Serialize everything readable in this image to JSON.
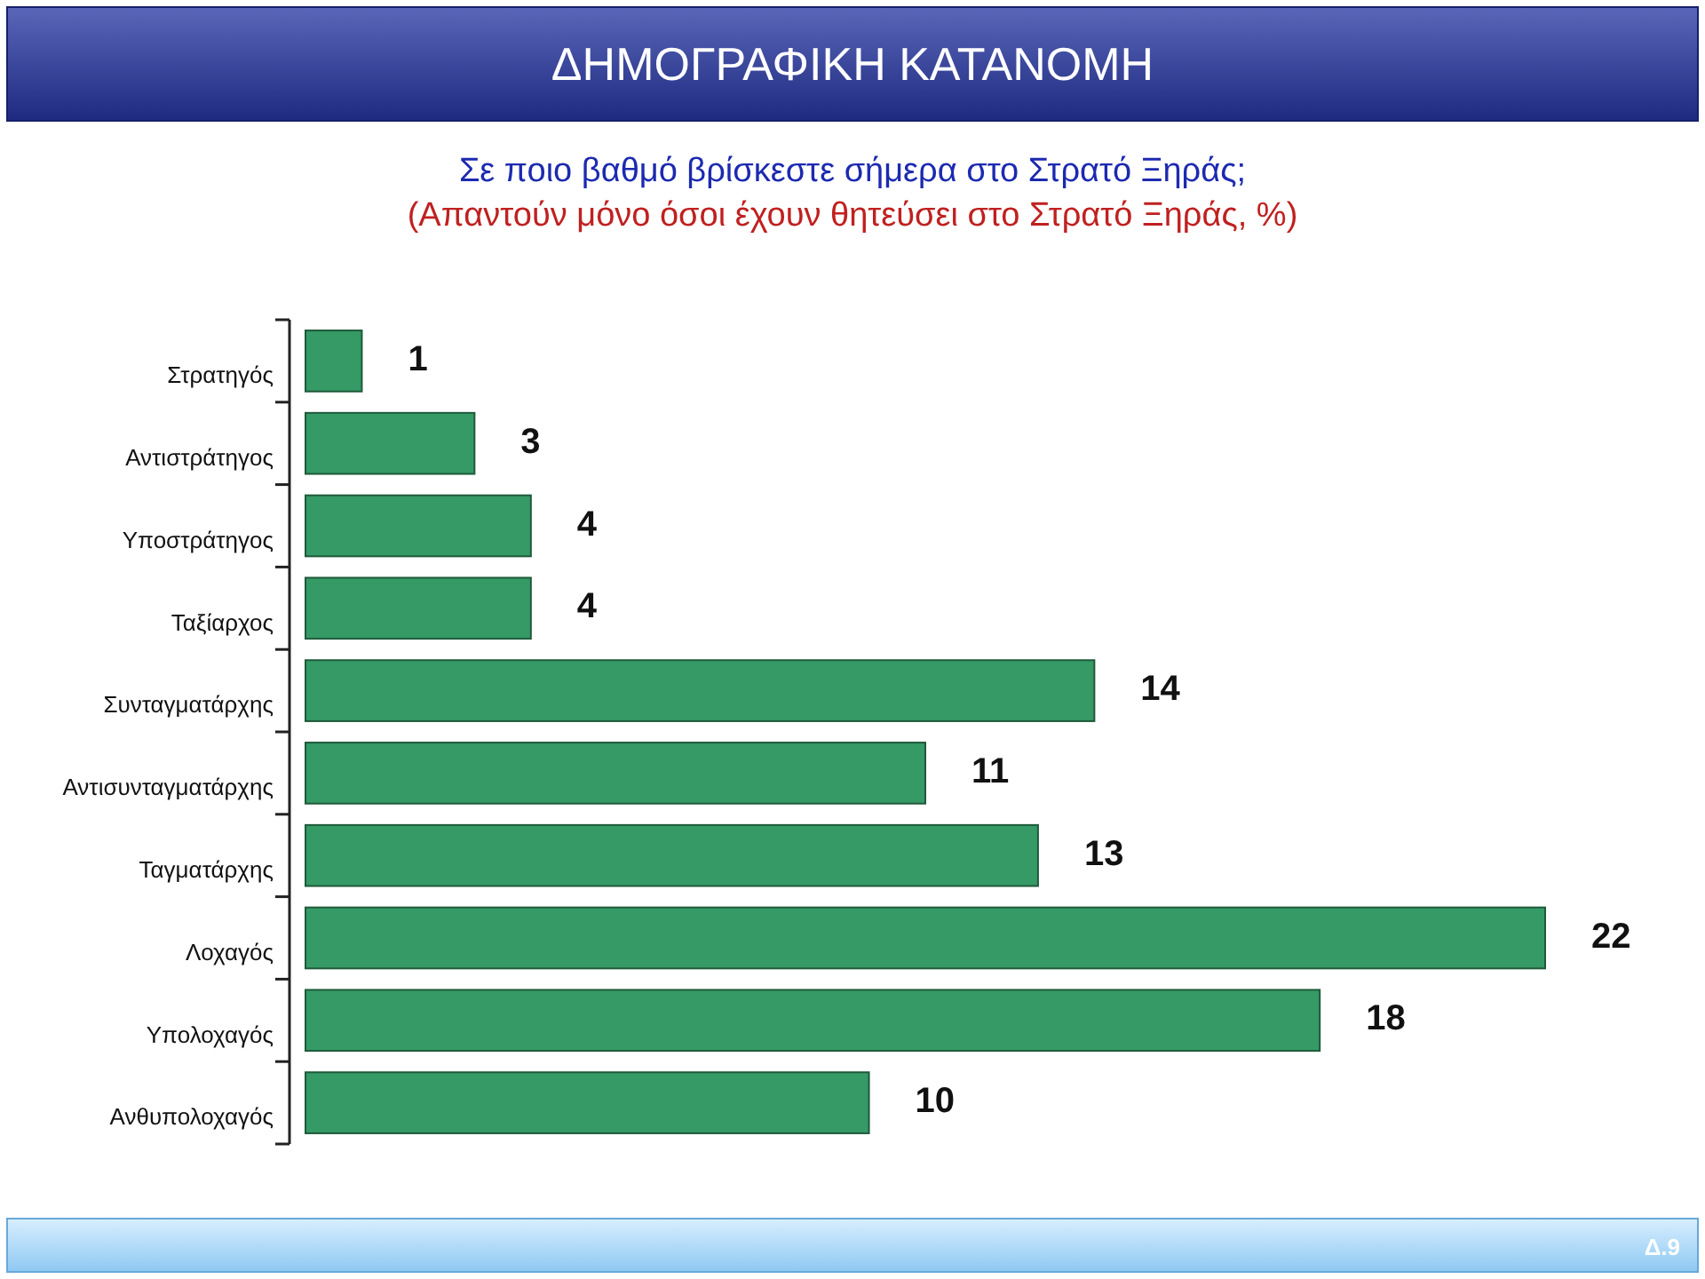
{
  "chart_data": {
    "type": "bar",
    "orientation": "horizontal",
    "title": "ΔΗΜΟΓΡΑΦΙΚΗ ΚΑΤΑΝΟΜΗ",
    "subtitle": "Σε ποιο βαθμό βρίσκεστε σήμερα στο Στρατό Ξηράς;\n(Απαντούν μόνο όσοι έχουν θητεύσει στο Στρατό Ξηράς, %)",
    "categories": [
      "Στρατηγός",
      "Αντιστράτηγος",
      "Υποστράτηγος",
      "Ταξίαρχος",
      "Συνταγματάρχης",
      "Αντισυνταγματάρχης",
      "Ταγματάρχης",
      "Λοχαγός",
      "Υπολοχαγός",
      "Ανθυπολοχαγός"
    ],
    "values": [
      1,
      3,
      4,
      4,
      14,
      11,
      13,
      22,
      18,
      10
    ],
    "color": "#359a66",
    "data_labels": true,
    "annotations": [
      "Δ.9"
    ]
  }
}
